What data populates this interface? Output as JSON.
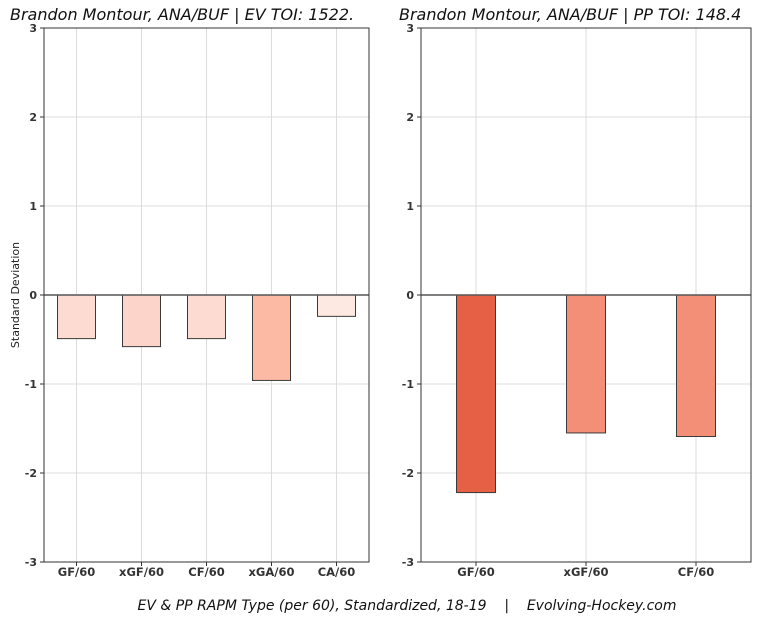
{
  "chart_data": [
    {
      "type": "bar",
      "title": "Brandon Montour, ANA/BUF  |  EV TOI: 1522.",
      "ylabel": "Standard Deviation",
      "xlabel": "",
      "ylim": [
        -3,
        3
      ],
      "yticks": [
        "3",
        "2",
        "1",
        "0",
        "-1",
        "-2",
        "-3"
      ],
      "grid": true,
      "categories": [
        "GF/60",
        "xGF/60",
        "CF/60",
        "xGA/60",
        "CA/60"
      ],
      "values": [
        -0.49,
        -0.58,
        -0.49,
        -0.96,
        -0.24
      ],
      "colors": [
        "#fddbd2",
        "#fdd4c9",
        "#fddbd2",
        "#fcb9a4",
        "#fee8e2"
      ]
    },
    {
      "type": "bar",
      "title": "Brandon Montour, ANA/BUF  |  PP TOI: 148.4",
      "ylabel": "",
      "xlabel": "",
      "ylim": [
        -3,
        3
      ],
      "yticks": [
        "3",
        "2",
        "1",
        "0",
        "-1",
        "-2",
        "-3"
      ],
      "grid": true,
      "categories": [
        "GF/60",
        "xGF/60",
        "CF/60"
      ],
      "values": [
        -2.22,
        -1.55,
        -1.59
      ],
      "colors": [
        "#e56045",
        "#f48f77",
        "#f48f77"
      ]
    }
  ],
  "caption": "EV & PP RAPM Type (per 60), Standardized, 18-19    |    Evolving-Hockey.com"
}
